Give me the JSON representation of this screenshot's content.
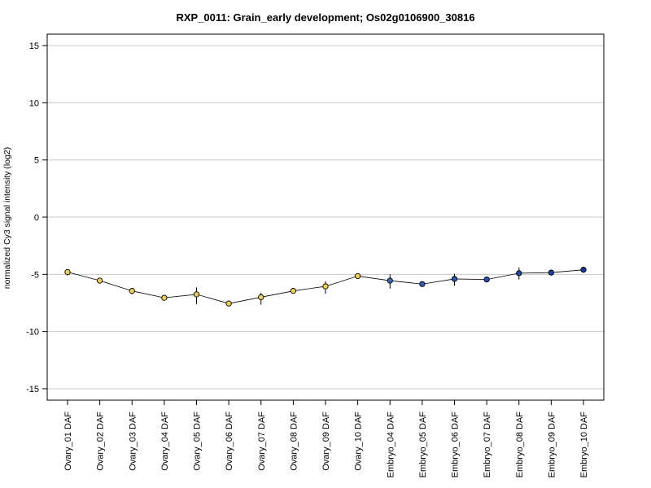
{
  "chart_data": {
    "type": "line",
    "title": "RXP_0011: Grain_early development; Os02g0106900_30816",
    "xlabel": "",
    "ylabel": "normalized Cy3 signal intensity (log2)",
    "ylim": [
      -16,
      16
    ],
    "yticks": [
      -15,
      -10,
      -5,
      0,
      5,
      10,
      15
    ],
    "grid": true,
    "categories": [
      "Ovary_01 DAF",
      "Ovary_02 DAF",
      "Ovary_03 DAF",
      "Ovary_04 DAF",
      "Ovary_05 DAF",
      "Ovary_06 DAF",
      "Ovary_07 DAF",
      "Ovary_08 DAF",
      "Ovary_09 DAF",
      "Ovary_10 DAF",
      "Embryo_04 DAF",
      "Embryo_05 DAF",
      "Embryo_06 DAF",
      "Embryo_07 DAF",
      "Embryo_08 DAF",
      "Embryo_09 DAF",
      "Embryo_10 DAF"
    ],
    "values": [
      -4.8,
      -5.55,
      -6.45,
      -7.05,
      -6.75,
      -7.55,
      -7.0,
      -6.45,
      -6.05,
      -5.15,
      -5.55,
      -5.85,
      -5.4,
      -5.45,
      -4.9,
      -4.85,
      -4.6
    ],
    "error_low": [
      -5.1,
      -5.65,
      -6.75,
      -7.25,
      -7.6,
      -7.8,
      -7.65,
      -6.6,
      -6.7,
      -5.25,
      -6.25,
      -5.95,
      -6.0,
      -5.55,
      -5.45,
      -5.0,
      -4.7
    ],
    "error_high": [
      -4.55,
      -5.45,
      -6.2,
      -6.85,
      -6.15,
      -7.3,
      -6.6,
      -6.3,
      -5.6,
      -5.05,
      -5.0,
      -5.75,
      -4.95,
      -5.35,
      -4.4,
      -4.75,
      -4.5
    ],
    "point_colors": [
      "#F2D04F",
      "#F2D04F",
      "#F2D04F",
      "#F2D04F",
      "#F2D04F",
      "#F2D04F",
      "#F2D04F",
      "#F2D04F",
      "#F2D04F",
      "#F2D04F",
      "#3A66C0",
      "#2F5BB8",
      "#2A55B5",
      "#2650B0",
      "#1F47A8",
      "#1A3FA0",
      "#15399A"
    ]
  }
}
